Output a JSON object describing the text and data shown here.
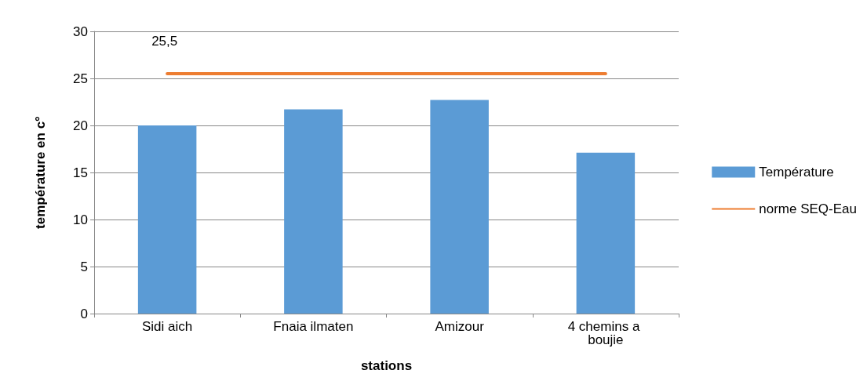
{
  "chart_data": {
    "type": "bar",
    "xlabel": "stations",
    "ylabel": "température en c°",
    "categories": [
      "Sidi aich",
      "Fnaia ilmaten",
      "Amizour",
      "4 chemins a boujie"
    ],
    "series": [
      {
        "name": "Température",
        "color": "#5b9bd5",
        "values": [
          20.0,
          21.7,
          22.7,
          17.1
        ]
      },
      {
        "name": "norme SEQ-Eau",
        "type": "line",
        "color": "#ed7d31",
        "values": [
          25.5,
          25.5,
          25.5,
          25.5
        ],
        "value_labels": [
          "25,5",
          null,
          null,
          null
        ]
      }
    ],
    "ylim": [
      0,
      30
    ],
    "yticks": [
      0,
      5,
      10,
      15,
      20,
      25,
      30
    ],
    "grid": "y",
    "legend": "right",
    "marker": "none"
  }
}
